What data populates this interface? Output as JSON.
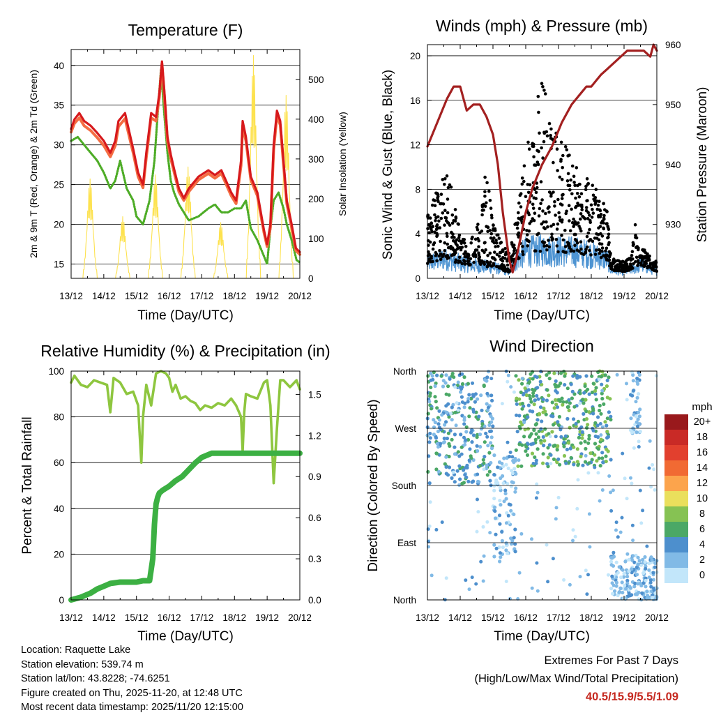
{
  "chart_data": [
    {
      "type": "line",
      "title": "Temperature (F)",
      "xlabel": "Time (Day/UTC)",
      "ylabel": "2m & 9m T (Red, Orange) & 2m Td (Green)",
      "y2label": "Solar Insolation (Yellow)",
      "x_ticks": [
        "13/12",
        "14/12",
        "15/12",
        "16/12",
        "17/12",
        "18/12",
        "19/12",
        "20/12"
      ],
      "xlim": [
        0,
        7
      ],
      "ylim": [
        13.2,
        42
      ],
      "yticks": [
        15,
        20,
        25,
        30,
        35,
        40
      ],
      "y2lim": [
        0,
        575
      ],
      "y2ticks": [
        0,
        100,
        200,
        300,
        400,
        500
      ],
      "grid": true,
      "series": [
        {
          "name": "2m T",
          "color": "#d7191c",
          "axis": "left",
          "x": [
            0,
            0.1,
            0.25,
            0.4,
            0.6,
            0.8,
            1.0,
            1.2,
            1.35,
            1.45,
            1.65,
            1.9,
            2.05,
            2.2,
            2.3,
            2.45,
            2.6,
            2.7,
            2.78,
            2.85,
            2.95,
            3.05,
            3.15,
            3.3,
            3.45,
            3.6,
            3.9,
            4.2,
            4.4,
            4.6,
            4.9,
            5.05,
            5.2,
            5.25,
            5.35,
            5.5,
            5.7,
            5.9,
            6.0,
            6.1,
            6.2,
            6.3,
            6.4,
            6.5,
            6.6,
            6.75,
            6.88,
            7.0
          ],
          "y": [
            32,
            33.2,
            34,
            33,
            32.4,
            31.5,
            30.5,
            29,
            30.5,
            33,
            34,
            29.5,
            26.5,
            25,
            29,
            34,
            33.5,
            36.5,
            40.5,
            37,
            31,
            28.8,
            27,
            24.5,
            23.3,
            24.5,
            26,
            26.8,
            26.2,
            26.8,
            24,
            23,
            28,
            33,
            31,
            26,
            24,
            19.3,
            17.5,
            20,
            30,
            34.3,
            33,
            28,
            23,
            20,
            17,
            16.5
          ]
        },
        {
          "name": "9m T",
          "color": "#f46d43",
          "axis": "left",
          "x": [
            0,
            0.1,
            0.25,
            0.4,
            0.6,
            0.8,
            1.0,
            1.2,
            1.35,
            1.45,
            1.65,
            1.9,
            2.05,
            2.2,
            2.3,
            2.45,
            2.6,
            2.7,
            2.78,
            2.85,
            2.95,
            3.05,
            3.15,
            3.3,
            3.45,
            3.6,
            3.9,
            4.2,
            4.4,
            4.6,
            4.9,
            5.05,
            5.2,
            5.25,
            5.35,
            5.5,
            5.7,
            5.9,
            6.0,
            6.1,
            6.2,
            6.3,
            6.4,
            6.5,
            6.6,
            6.75,
            6.88,
            7.0
          ],
          "y": [
            31.6,
            32.7,
            33.4,
            32.4,
            31.8,
            30.9,
            29.9,
            28.5,
            29.9,
            32.3,
            33.3,
            29,
            26,
            24.6,
            28.4,
            33.4,
            33,
            36,
            40.2,
            36.5,
            30.5,
            28.3,
            26.6,
            24.1,
            23,
            24.1,
            25.6,
            26.4,
            25.8,
            26.4,
            23.6,
            22.6,
            27.4,
            32.4,
            30.5,
            25.6,
            23.6,
            19,
            17.2,
            19.6,
            29.4,
            33.7,
            32.5,
            27.5,
            22.6,
            19.6,
            16.7,
            16.2
          ]
        },
        {
          "name": "2m Td",
          "color": "#4dac26",
          "axis": "left",
          "x": [
            0,
            0.2,
            0.4,
            0.6,
            0.8,
            1.0,
            1.2,
            1.35,
            1.5,
            1.7,
            1.9,
            2.0,
            2.2,
            2.4,
            2.55,
            2.65,
            2.75,
            2.85,
            2.95,
            3.05,
            3.15,
            3.3,
            3.45,
            3.6,
            3.9,
            4.2,
            4.4,
            4.6,
            4.8,
            5.0,
            5.2,
            5.35,
            5.5,
            5.7,
            5.9,
            6.0,
            6.1,
            6.2,
            6.35,
            6.5,
            6.6,
            6.75,
            6.9,
            7.0
          ],
          "y": [
            30.5,
            31,
            30,
            29,
            28,
            26.5,
            24.5,
            25.5,
            28,
            24.5,
            23,
            21,
            20,
            23,
            28,
            34,
            39.5,
            34,
            29,
            25.5,
            24,
            22.5,
            21.5,
            20.5,
            21,
            22,
            22.5,
            21.5,
            21.5,
            22,
            22,
            23,
            19.5,
            18,
            16,
            15,
            19.5,
            23,
            24,
            22,
            20,
            18,
            15.5,
            15.2
          ]
        },
        {
          "name": "Solar Insolation",
          "color": "#fde24f",
          "axis": "right",
          "peaks_x": [
            0.58,
            1.58,
            2.58,
            3.58,
            4.58,
            5.58,
            6.58
          ],
          "peaks_y": [
            250,
            155,
            260,
            280,
            140,
            560,
            460
          ]
        }
      ]
    },
    {
      "type": "scatter",
      "title": "Winds (mph) & Pressure (mb)",
      "xlabel": "Time (Day/UTC)",
      "ylabel": "Sonic Wind & Gust (Blue, Black)",
      "y2label": "Station Pressure (Maroon)",
      "x_ticks": [
        "13/12",
        "14/12",
        "15/12",
        "16/12",
        "17/12",
        "18/12",
        "19/12",
        "20/12"
      ],
      "xlim": [
        0,
        7
      ],
      "ylim": [
        0,
        21
      ],
      "yticks": [
        0,
        4,
        8,
        12,
        16,
        20
      ],
      "y2lim": [
        921,
        960
      ],
      "y2ticks": [
        930,
        940,
        950,
        960
      ],
      "grid": true,
      "series": [
        {
          "name": "Station Pressure",
          "color": "#a32020",
          "axis": "right",
          "x": [
            0,
            0.3,
            0.6,
            0.8,
            1.0,
            1.2,
            1.4,
            1.6,
            1.8,
            2.0,
            2.15,
            2.3,
            2.5,
            2.6,
            2.7,
            2.85,
            3.0,
            3.2,
            3.5,
            3.8,
            4.1,
            4.4,
            4.7,
            4.85,
            5.0,
            5.15,
            5.3,
            5.5,
            5.7,
            5.9,
            6.1,
            6.4,
            6.6,
            6.8,
            6.9,
            7.0
          ],
          "y": [
            943,
            947,
            951,
            953,
            953,
            949,
            950,
            950,
            948,
            945,
            940,
            932,
            924,
            922,
            924,
            928,
            932,
            936,
            940,
            943,
            947,
            950,
            952,
            953,
            953,
            954,
            955,
            956,
            957,
            958,
            959,
            959,
            959,
            958,
            960,
            959
          ]
        },
        {
          "name": "Sonic Wind",
          "color": "#4e94d2",
          "axis": "left",
          "envelope_x": [
            0,
            0.5,
            1.0,
            1.5,
            2.0,
            2.5,
            2.75,
            3.0,
            3.5,
            4.0,
            4.5,
            5.0,
            5.5,
            5.6,
            6.0,
            6.3,
            6.5,
            7.0
          ],
          "envelope_y": [
            2.2,
            2.8,
            2.2,
            1.8,
            1.6,
            0.9,
            2.8,
            3.8,
            4.0,
            3.9,
            3.8,
            3.4,
            2.6,
            1.2,
            1.0,
            1.4,
            2.0,
            1.0
          ]
        },
        {
          "name": "Gust",
          "color": "#000000",
          "axis": "left",
          "envelope_x": [
            0,
            0.3,
            0.5,
            0.8,
            1.0,
            1.3,
            1.6,
            1.8,
            2.0,
            2.3,
            2.5,
            2.75,
            3.0,
            3.25,
            3.5,
            3.8,
            4.0,
            4.3,
            4.6,
            4.9,
            5.2,
            5.5,
            5.6,
            6.0,
            6.2,
            6.35,
            6.5,
            6.8,
            7.0
          ],
          "envelope_y": [
            6,
            8,
            10,
            8,
            4,
            3,
            6,
            10,
            5,
            3,
            2.5,
            6,
            12,
            15,
            18,
            14,
            13,
            12,
            10,
            9,
            8,
            6,
            1.8,
            1.5,
            2,
            5,
            3,
            2,
            1.5
          ]
        }
      ]
    },
    {
      "type": "line",
      "title": "Relative Humidity (%) & Precipitation (in)",
      "xlabel": "Time (Day/UTC)",
      "ylabel": "Percent & Total Rainfall",
      "x_ticks": [
        "13/12",
        "14/12",
        "15/12",
        "16/12",
        "17/12",
        "18/12",
        "19/12",
        "20/12"
      ],
      "xlim": [
        0,
        7
      ],
      "ylim": [
        0,
        100
      ],
      "yticks": [
        0,
        20,
        40,
        60,
        80,
        100
      ],
      "y2lim": [
        0,
        1.67
      ],
      "y2ticks": [
        "0.0",
        "0.3",
        "0.6",
        "0.9",
        "1.2",
        "1.5"
      ],
      "grid": true,
      "series": [
        {
          "name": "Relative Humidity",
          "color": "#8ec63f",
          "axis": "left",
          "x": [
            0,
            0.1,
            0.3,
            0.5,
            0.7,
            0.9,
            1.1,
            1.2,
            1.3,
            1.5,
            1.7,
            1.9,
            2.05,
            2.1,
            2.15,
            2.2,
            2.3,
            2.45,
            2.6,
            2.75,
            2.9,
            3.0,
            3.1,
            3.2,
            3.35,
            3.5,
            3.65,
            3.8,
            3.95,
            4.1,
            4.3,
            4.5,
            4.7,
            4.9,
            5.05,
            5.2,
            5.25,
            5.3,
            5.35,
            5.5,
            5.7,
            5.9,
            6.0,
            6.1,
            6.2,
            6.3,
            6.4,
            6.5,
            6.7,
            6.9,
            7.0
          ],
          "y": [
            95,
            98,
            94,
            93,
            96,
            95,
            94,
            82,
            97,
            95,
            90,
            91,
            85,
            72,
            60,
            80,
            94,
            85,
            99,
            100,
            99,
            97,
            91,
            94,
            88,
            89,
            87,
            86,
            83,
            85,
            84,
            86,
            85,
            88,
            85,
            80,
            65,
            82,
            90,
            89,
            88,
            95,
            96,
            85,
            51,
            75,
            96,
            96,
            93,
            96,
            92
          ]
        },
        {
          "name": "Total Rainfall",
          "color": "#3cb043",
          "axis": "right",
          "x": [
            0,
            0.3,
            0.6,
            0.8,
            1.0,
            1.2,
            1.5,
            1.8,
            2.0,
            2.2,
            2.4,
            2.5,
            2.55,
            2.6,
            2.65,
            2.7,
            2.8,
            3.0,
            3.2,
            3.4,
            3.6,
            3.8,
            4.0,
            4.3,
            5.0,
            6.0,
            7.0
          ],
          "y": [
            0,
            0.02,
            0.05,
            0.08,
            0.1,
            0.12,
            0.13,
            0.13,
            0.13,
            0.14,
            0.14,
            0.3,
            0.55,
            0.7,
            0.75,
            0.78,
            0.8,
            0.83,
            0.87,
            0.9,
            0.95,
            1.0,
            1.04,
            1.07,
            1.07,
            1.07,
            1.07
          ]
        }
      ]
    },
    {
      "type": "scatter",
      "title": "Wind Direction",
      "xlabel": "Time (Day/UTC)",
      "ylabel": "Direction (Colored By Speed)",
      "x_ticks": [
        "13/12",
        "14/12",
        "15/12",
        "16/12",
        "17/12",
        "18/12",
        "19/12",
        "20/12"
      ],
      "xlim": [
        0,
        7
      ],
      "ylim": [
        0,
        360
      ],
      "y_tick_labels": [
        "North",
        "East",
        "South",
        "West",
        "North"
      ],
      "y_tick_values": [
        0,
        90,
        180,
        270,
        360
      ],
      "grid": true,
      "legend": {
        "title": "mph",
        "labels": [
          "20+",
          "18",
          "16",
          "14",
          "12",
          "10",
          "8",
          "6",
          "4",
          "2",
          "0"
        ],
        "colors": [
          "#99191c",
          "#c92a26",
          "#e2402e",
          "#f16a33",
          "#fca44c",
          "#eadf5c",
          "#86c253",
          "#4ba866",
          "#4d8fcd",
          "#81bae6",
          "#c2e6fa"
        ],
        "placement": "right"
      },
      "clusters": [
        {
          "x0": 0,
          "x1": 1.0,
          "dir_range": [
            180,
            360
          ],
          "speed": 2
        },
        {
          "x0": 1.0,
          "x1": 2.0,
          "dir_range": [
            180,
            360
          ],
          "speed": 2
        },
        {
          "x0": 2.0,
          "x1": 2.7,
          "dir_range": [
            60,
            230
          ],
          "speed": 1
        },
        {
          "x0": 2.7,
          "x1": 5.6,
          "dir_range": [
            210,
            360
          ],
          "speed": 3
        },
        {
          "x0": 5.6,
          "x1": 7.0,
          "dir_range": [
            0,
            70
          ],
          "speed": 1
        },
        {
          "x0": 6.2,
          "x1": 6.5,
          "dir_range": [
            260,
            360
          ],
          "speed": 1
        }
      ]
    }
  ],
  "info": {
    "location": "Location: Raquette Lake",
    "elevation": "Station elevation: 539.74 m",
    "latlon": "Station lat/lon: 43.8228; -74.6251",
    "created": "Figure created on Thu, 2025-11-20, at 12:48 UTC",
    "recent": "Most recent data timestamp: 2025/11/20 12:15:00"
  },
  "extremes": {
    "title": "Extremes For Past 7 Days",
    "subtitle": "(High/Low/Max Wind/Total Precipitation)",
    "values": "40.5/15.9/5.5/1.09"
  }
}
